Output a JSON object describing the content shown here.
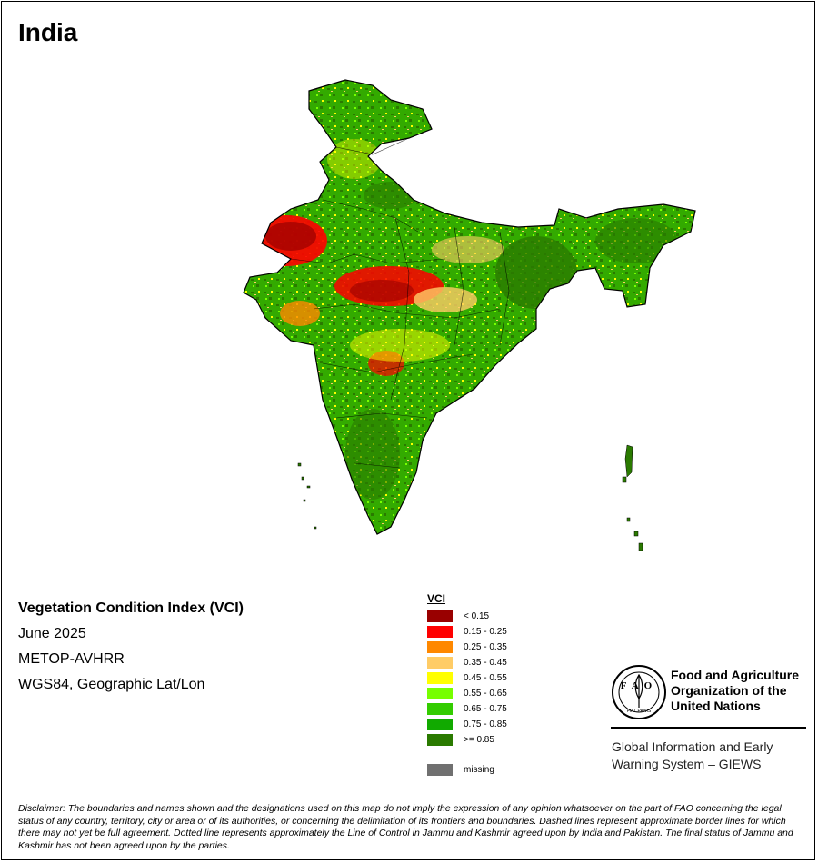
{
  "title": "India",
  "info": {
    "index_name": "Vegetation Condition Index (VCI)",
    "period": "June 2025",
    "sensor": "METOP-AVHRR",
    "projection": "WGS84, Geographic Lat/Lon"
  },
  "legend": {
    "title": "VCI",
    "classes": [
      {
        "label": "< 0.15",
        "color": "#990000"
      },
      {
        "label": "0.15 - 0.25",
        "color": "#ff0000"
      },
      {
        "label": "0.25 - 0.35",
        "color": "#ff8800"
      },
      {
        "label": "0.35 - 0.45",
        "color": "#ffcc66"
      },
      {
        "label": "0.45 - 0.55",
        "color": "#ffff00"
      },
      {
        "label": "0.55 - 0.65",
        "color": "#77ff00"
      },
      {
        "label": "0.65 - 0.75",
        "color": "#33cc00"
      },
      {
        "label": "0.75 - 0.85",
        "color": "#11aa00"
      },
      {
        "label": ">= 0.85",
        "color": "#2a7a00"
      }
    ],
    "missing": {
      "label": "missing",
      "color": "#707070"
    }
  },
  "organization": {
    "line1": "Food and Agriculture",
    "line2": "Organization of the",
    "line3": "United Nations",
    "logo_letters": "FAO",
    "logo_motto": "FIAT PANIS"
  },
  "giews": {
    "line1": "Global Information and Early",
    "line2": "Warning System – GIEWS"
  },
  "disclaimer": "Disclaimer: The boundaries and names shown and the designations used on this map do not imply the expression of any opinion whatsoever on the part of FAO concerning the legal status of any country, territory, city or area or of its authorities, or concerning the delimitation of its frontiers and boundaries. Dashed lines represent approximate border lines for which there may not yet be full agreement. Dotted line represents approximately the Line of Control in Jammu and Kashmir agreed upon by India and Pakistan. The final status of Jammu and Kashmir has not been agreed upon by the parties."
}
